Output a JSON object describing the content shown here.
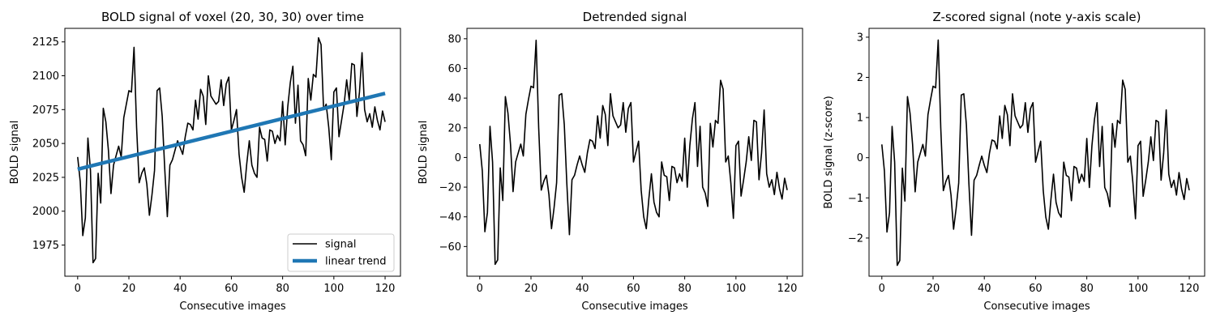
{
  "chart_data": [
    {
      "type": "line",
      "title": "BOLD signal of voxel (20, 30, 30) over time",
      "xlabel": "Consecutive images",
      "ylabel": "BOLD signal",
      "xlim": [
        -5,
        126
      ],
      "ylim": [
        1952,
        2135
      ],
      "xticks": [
        0,
        20,
        40,
        60,
        80,
        100,
        120
      ],
      "yticks": [
        1975,
        2000,
        2025,
        2050,
        2075,
        2100,
        2125
      ],
      "grid": false,
      "legend": {
        "placement": "lower-right",
        "entries": [
          "signal",
          "linear trend"
        ]
      },
      "series": [
        {
          "name": "signal",
          "color": "#000000",
          "x": [
            0,
            1,
            2,
            3,
            4,
            5,
            6,
            7,
            8,
            9,
            10,
            11,
            12,
            13,
            14,
            15,
            16,
            17,
            18,
            19,
            20,
            21,
            22,
            23,
            24,
            25,
            26,
            27,
            28,
            29,
            30,
            31,
            32,
            33,
            34,
            35,
            36,
            37,
            38,
            39,
            40,
            41,
            42,
            43,
            44,
            45,
            46,
            47,
            48,
            49,
            50,
            51,
            52,
            53,
            54,
            55,
            56,
            57,
            58,
            59,
            60,
            61,
            62,
            63,
            64,
            65,
            66,
            67,
            68,
            69,
            70,
            71,
            72,
            73,
            74,
            75,
            76,
            77,
            78,
            79,
            80,
            81,
            82,
            83,
            84,
            85,
            86,
            87,
            88,
            89,
            90,
            91,
            92,
            93,
            94,
            95,
            96,
            97,
            98,
            99,
            100,
            101,
            102,
            103,
            104,
            105,
            106,
            107,
            108,
            109,
            110,
            111,
            112,
            113,
            114,
            115,
            116,
            117,
            118,
            119,
            120
          ],
          "y": [
            2040,
            2022,
            1982,
            1995,
            2054,
            2030,
            1962,
            1965,
            2028,
            2006,
            2076,
            2066,
            2045,
            2013,
            2034,
            2041,
            2048,
            2040,
            2069,
            2079,
            2089,
            2088,
            2121,
            2062,
            2021,
            2028,
            2032,
            2020,
            1997,
            2012,
            2030,
            2089,
            2091,
            2070,
            2031,
            1996,
            2034,
            2038,
            2045,
            2052,
            2047,
            2042,
            2055,
            2065,
            2064,
            2060,
            2082,
            2068,
            2090,
            2085,
            2064,
            2100,
            2085,
            2082,
            2079,
            2081,
            2097,
            2078,
            2094,
            2099,
            2060,
            2067,
            2075,
            2042,
            2025,
            2014,
            2035,
            2052,
            2034,
            2028,
            2025,
            2062,
            2054,
            2053,
            2037,
            2060,
            2059,
            2050,
            2056,
            2052,
            2081,
            2049,
            2077,
            2095,
            2107,
            2065,
            2093,
            2052,
            2049,
            2041,
            2098,
            2082,
            2101,
            2099,
            2128,
            2123,
            2075,
            2079,
            2062,
            2038,
            2088,
            2091,
            2055,
            2067,
            2079,
            2097,
            2082,
            2109,
            2108,
            2070,
            2088,
            2117,
            2075,
            2066,
            2072,
            2062,
            2077,
            2067,
            2060,
            2074,
            2066
          ]
        },
        {
          "name": "linear trend",
          "color": "#1f77b4",
          "x": [
            0,
            120
          ],
          "y": [
            2031,
            2087
          ]
        }
      ]
    },
    {
      "type": "line",
      "title": "Detrended signal",
      "xlabel": "Consecutive images",
      "ylabel": "BOLD signal",
      "xlim": [
        -5,
        126
      ],
      "ylim": [
        -80,
        87
      ],
      "xticks": [
        0,
        20,
        40,
        60,
        80,
        100,
        120
      ],
      "yticks": [
        -60,
        -40,
        -20,
        0,
        20,
        40,
        60,
        80
      ],
      "grid": false,
      "series": [
        {
          "color": "#000000",
          "x": [
            0,
            1,
            2,
            3,
            4,
            5,
            6,
            7,
            8,
            9,
            10,
            11,
            12,
            13,
            14,
            15,
            16,
            17,
            18,
            19,
            20,
            21,
            22,
            23,
            24,
            25,
            26,
            27,
            28,
            29,
            30,
            31,
            32,
            33,
            34,
            35,
            36,
            37,
            38,
            39,
            40,
            41,
            42,
            43,
            44,
            45,
            46,
            47,
            48,
            49,
            50,
            51,
            52,
            53,
            54,
            55,
            56,
            57,
            58,
            59,
            60,
            61,
            62,
            63,
            64,
            65,
            66,
            67,
            68,
            69,
            70,
            71,
            72,
            73,
            74,
            75,
            76,
            77,
            78,
            79,
            80,
            81,
            82,
            83,
            84,
            85,
            86,
            87,
            88,
            89,
            90,
            91,
            92,
            93,
            94,
            95,
            96,
            97,
            98,
            99,
            100,
            101,
            102,
            103,
            104,
            105,
            106,
            107,
            108,
            109,
            110,
            111,
            112,
            113,
            114,
            115,
            116,
            117,
            118,
            119,
            120
          ],
          "y": [
            9,
            -9,
            -50,
            -37,
            21,
            -3,
            -72,
            -69,
            -7,
            -29,
            41,
            30,
            9,
            -23,
            -3,
            3,
            9,
            1,
            29,
            39,
            48,
            47,
            79,
            20,
            -22,
            -16,
            -12,
            -25,
            -48,
            -34,
            -17,
            42,
            43,
            22,
            -18,
            -52,
            -15,
            -12,
            -5,
            1,
            -5,
            -10,
            3,
            12,
            11,
            6,
            28,
            13,
            35,
            29,
            8,
            43,
            28,
            24,
            20,
            22,
            37,
            17,
            33,
            37,
            -3,
            4,
            11,
            -22,
            -40,
            -48,
            -28,
            -11,
            -30,
            -37,
            -40,
            -3,
            -12,
            -13,
            -29,
            -6,
            -7,
            -17,
            -11,
            -16,
            13,
            -20,
            8,
            26,
            37,
            -6,
            21,
            -20,
            -24,
            -33,
            23,
            7,
            25,
            23,
            52,
            46,
            -3,
            1,
            -17,
            -41,
            8,
            11,
            -26,
            -15,
            -3,
            14,
            -2,
            25,
            24,
            -15,
            3,
            32,
            -11,
            -20,
            -15,
            -25,
            -10,
            -21,
            -28,
            -14,
            -22
          ]
        }
      ]
    },
    {
      "type": "line",
      "title": "Z-scored signal (note y-axis scale)",
      "xlabel": "Consecutive images",
      "ylabel": "BOLD signal (z-score)",
      "xlim": [
        -5,
        126
      ],
      "ylim": [
        -2.95,
        3.22
      ],
      "xticks": [
        0,
        20,
        40,
        60,
        80,
        100,
        120
      ],
      "yticks": [
        -2,
        -1,
        0,
        1,
        2,
        3
      ],
      "grid": false,
      "series": [
        {
          "color": "#000000",
          "x": [
            0,
            1,
            2,
            3,
            4,
            5,
            6,
            7,
            8,
            9,
            10,
            11,
            12,
            13,
            14,
            15,
            16,
            17,
            18,
            19,
            20,
            21,
            22,
            23,
            24,
            25,
            26,
            27,
            28,
            29,
            30,
            31,
            32,
            33,
            34,
            35,
            36,
            37,
            38,
            39,
            40,
            41,
            42,
            43,
            44,
            45,
            46,
            47,
            48,
            49,
            50,
            51,
            52,
            53,
            54,
            55,
            56,
            57,
            58,
            59,
            60,
            61,
            62,
            63,
            64,
            65,
            66,
            67,
            68,
            69,
            70,
            71,
            72,
            73,
            74,
            75,
            76,
            77,
            78,
            79,
            80,
            81,
            82,
            83,
            84,
            85,
            86,
            87,
            88,
            89,
            90,
            91,
            92,
            93,
            94,
            95,
            96,
            97,
            98,
            99,
            100,
            101,
            102,
            103,
            104,
            105,
            106,
            107,
            108,
            109,
            110,
            111,
            112,
            113,
            114,
            115,
            116,
            117,
            118,
            119,
            120
          ],
          "y": [
            0.33,
            -0.33,
            -1.85,
            -1.37,
            0.78,
            -0.11,
            -2.68,
            -2.56,
            -0.26,
            -1.08,
            1.52,
            1.11,
            0.33,
            -0.85,
            -0.11,
            0.11,
            0.33,
            0.04,
            1.07,
            1.44,
            1.78,
            1.74,
            2.93,
            0.74,
            -0.82,
            -0.59,
            -0.44,
            -0.93,
            -1.78,
            -1.26,
            -0.63,
            1.56,
            1.59,
            0.82,
            -0.67,
            -1.93,
            -0.56,
            -0.44,
            -0.19,
            0.04,
            -0.19,
            -0.37,
            0.11,
            0.44,
            0.41,
            0.22,
            1.04,
            0.48,
            1.3,
            1.07,
            0.3,
            1.59,
            1.04,
            0.89,
            0.74,
            0.82,
            1.37,
            0.63,
            1.22,
            1.37,
            -0.11,
            0.15,
            0.41,
            -0.82,
            -1.48,
            -1.78,
            -1.04,
            -0.41,
            -1.11,
            -1.37,
            -1.48,
            -0.11,
            -0.44,
            -0.48,
            -1.07,
            -0.22,
            -0.26,
            -0.63,
            -0.41,
            -0.59,
            0.48,
            -0.74,
            0.3,
            0.96,
            1.37,
            -0.22,
            0.78,
            -0.74,
            -0.89,
            -1.22,
            0.85,
            0.26,
            0.93,
            0.85,
            1.93,
            1.7,
            -0.11,
            0.04,
            -0.63,
            -1.52,
            0.3,
            0.41,
            -0.96,
            -0.56,
            -0.11,
            0.52,
            -0.07,
            0.93,
            0.89,
            -0.56,
            0.11,
            1.19,
            -0.41,
            -0.74,
            -0.56,
            -0.93,
            -0.37,
            -0.78,
            -1.04,
            -0.52,
            -0.81
          ]
        }
      ]
    }
  ]
}
